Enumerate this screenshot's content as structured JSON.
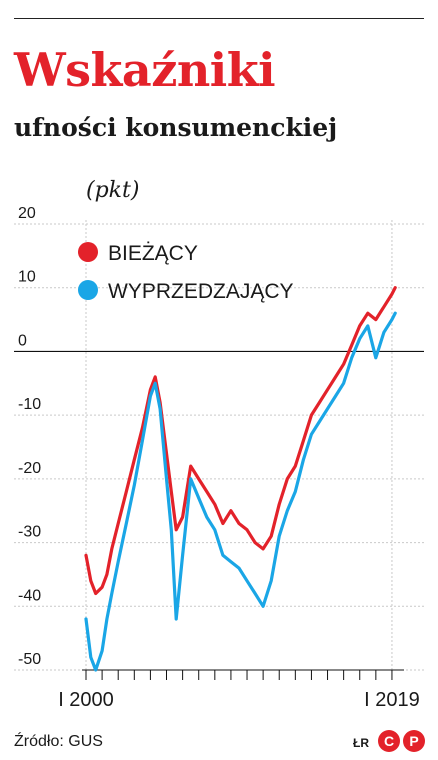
{
  "header": {
    "title": "Wskaźniki",
    "subtitle": "ufności konsumenckiej",
    "unit": "(pkt)"
  },
  "footer": {
    "source": "Źródło: GUS",
    "author": "ŁR",
    "logo_text": "CP"
  },
  "colors": {
    "current": "#e3222a",
    "leading": "#1aa6e6",
    "title": "#e3222a",
    "grid": "#c9c9c9"
  },
  "chart_data": {
    "type": "line",
    "unit": "(pkt)",
    "x_tick_labels": [
      "I 2000",
      "I 2019"
    ],
    "x_range": [
      2000.0,
      2019.5
    ],
    "ylim": [
      -50,
      20
    ],
    "yticks": [
      20,
      10,
      0,
      -10,
      -20,
      -30,
      -40,
      -50
    ],
    "grid": true,
    "legend_placement": "top-left",
    "series": [
      {
        "name": "BIEŻĄCY",
        "color": "#e3222a",
        "points": [
          [
            2000.0,
            -32
          ],
          [
            2000.3,
            -36
          ],
          [
            2000.6,
            -38
          ],
          [
            2001.0,
            -37
          ],
          [
            2001.3,
            -35
          ],
          [
            2001.6,
            -31
          ],
          [
            2002.0,
            -27
          ],
          [
            2002.5,
            -22
          ],
          [
            2003.0,
            -17
          ],
          [
            2003.5,
            -12
          ],
          [
            2004.0,
            -6
          ],
          [
            2004.3,
            -4
          ],
          [
            2004.6,
            -8
          ],
          [
            2005.0,
            -16
          ],
          [
            2005.3,
            -22
          ],
          [
            2005.6,
            -28
          ],
          [
            2006.0,
            -26
          ],
          [
            2006.5,
            -18
          ],
          [
            2007.0,
            -20
          ],
          [
            2007.5,
            -22
          ],
          [
            2008.0,
            -24
          ],
          [
            2008.5,
            -27
          ],
          [
            2009.0,
            -25
          ],
          [
            2009.5,
            -27
          ],
          [
            2010.0,
            -28
          ],
          [
            2010.5,
            -30
          ],
          [
            2011.0,
            -31
          ],
          [
            2011.5,
            -29
          ],
          [
            2012.0,
            -24
          ],
          [
            2012.5,
            -20
          ],
          [
            2013.0,
            -18
          ],
          [
            2013.5,
            -14
          ],
          [
            2014.0,
            -10
          ],
          [
            2014.5,
            -8
          ],
          [
            2015.0,
            -6
          ],
          [
            2015.5,
            -4
          ],
          [
            2016.0,
            -2
          ],
          [
            2016.5,
            1
          ],
          [
            2017.0,
            4
          ],
          [
            2017.5,
            6
          ],
          [
            2018.0,
            5
          ],
          [
            2018.5,
            7
          ],
          [
            2019.0,
            9
          ],
          [
            2019.2,
            10
          ]
        ]
      },
      {
        "name": "WYPRZEDZAJĄCY",
        "color": "#1aa6e6",
        "points": [
          [
            2000.0,
            -42
          ],
          [
            2000.3,
            -48
          ],
          [
            2000.6,
            -50
          ],
          [
            2001.0,
            -47
          ],
          [
            2001.3,
            -42
          ],
          [
            2001.6,
            -38
          ],
          [
            2002.0,
            -33
          ],
          [
            2002.5,
            -27
          ],
          [
            2003.0,
            -21
          ],
          [
            2003.5,
            -14
          ],
          [
            2004.0,
            -7
          ],
          [
            2004.3,
            -5
          ],
          [
            2004.6,
            -9
          ],
          [
            2005.0,
            -20
          ],
          [
            2005.3,
            -28
          ],
          [
            2005.6,
            -42
          ],
          [
            2006.0,
            -32
          ],
          [
            2006.5,
            -20
          ],
          [
            2007.0,
            -23
          ],
          [
            2007.5,
            -26
          ],
          [
            2008.0,
            -28
          ],
          [
            2008.5,
            -32
          ],
          [
            2009.0,
            -33
          ],
          [
            2009.5,
            -34
          ],
          [
            2010.0,
            -36
          ],
          [
            2010.5,
            -38
          ],
          [
            2011.0,
            -40
          ],
          [
            2011.5,
            -36
          ],
          [
            2012.0,
            -29
          ],
          [
            2012.5,
            -25
          ],
          [
            2013.0,
            -22
          ],
          [
            2013.5,
            -17
          ],
          [
            2014.0,
            -13
          ],
          [
            2014.5,
            -11
          ],
          [
            2015.0,
            -9
          ],
          [
            2015.5,
            -7
          ],
          [
            2016.0,
            -5
          ],
          [
            2016.5,
            -1
          ],
          [
            2017.0,
            2
          ],
          [
            2017.5,
            4
          ],
          [
            2018.0,
            -1
          ],
          [
            2018.5,
            3
          ],
          [
            2019.0,
            5
          ],
          [
            2019.2,
            6
          ]
        ]
      }
    ]
  }
}
